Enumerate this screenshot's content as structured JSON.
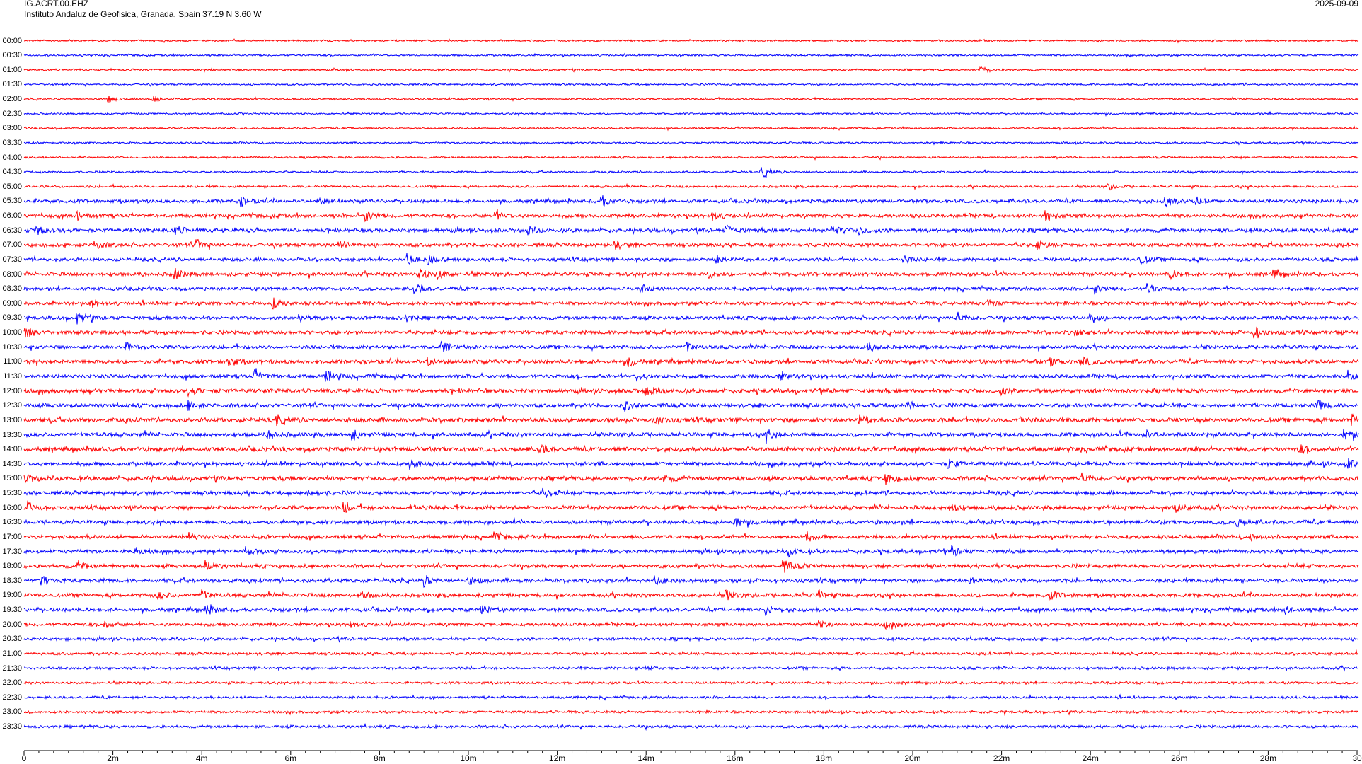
{
  "header": {
    "station": "IG.ACRT.00.EHZ",
    "institution": "Instituto Andaluz de Geofisica, Granada, Spain  37.19 N 3.60 W",
    "date": "2025-09-09"
  },
  "colors": {
    "even_row": "#ff0000",
    "odd_row": "#0000ff",
    "axis": "#000000"
  },
  "rows": [
    "00:00",
    "00:30",
    "01:00",
    "01:30",
    "02:00",
    "02:30",
    "03:00",
    "03:30",
    "04:00",
    "04:30",
    "05:00",
    "05:30",
    "06:00",
    "06:30",
    "07:00",
    "07:30",
    "08:00",
    "08:30",
    "09:00",
    "09:30",
    "10:00",
    "10:30",
    "11:00",
    "11:30",
    "12:00",
    "12:30",
    "13:00",
    "13:30",
    "14:00",
    "14:30",
    "15:00",
    "15:30",
    "16:00",
    "16:30",
    "17:00",
    "17:30",
    "18:00",
    "18:30",
    "19:00",
    "19:30",
    "20:00",
    "20:30",
    "21:00",
    "21:30",
    "22:00",
    "22:30",
    "23:00",
    "23:30"
  ],
  "x_axis": {
    "range_minutes": [
      0,
      30
    ],
    "major_step_minutes": 2,
    "minor_step_seconds": 20,
    "labels": [
      "0",
      "2m",
      "4m",
      "6m",
      "8m",
      "10m",
      "12m",
      "14m",
      "16m",
      "18m",
      "20m",
      "22m",
      "24m",
      "26m",
      "28m",
      "30"
    ]
  },
  "trace_noise": [
    1,
    1,
    1.1,
    1,
    1,
    1,
    1,
    1,
    1.1,
    1.1,
    1.3,
    2,
    2.2,
    2.3,
    2.2,
    2,
    2.2,
    2,
    2,
    2.2,
    2.2,
    2.2,
    2.3,
    2.3,
    2.4,
    2.4,
    2.5,
    2.5,
    2.5,
    2.4,
    2.4,
    2.3,
    2.4,
    2.3,
    2.2,
    2.2,
    2.2,
    2.3,
    2.2,
    2.2,
    2,
    1.7,
    1.6,
    1.5,
    1.4,
    1.4,
    1.5,
    1.6
  ],
  "events": [
    [
      2,
      21.5,
      6
    ],
    [
      4,
      1.9,
      4
    ],
    [
      4,
      2.9,
      4
    ],
    [
      9,
      16.6,
      9
    ],
    [
      10,
      24.4,
      5
    ],
    [
      11,
      4.9,
      6
    ],
    [
      11,
      6.6,
      5
    ],
    [
      11,
      13.0,
      7
    ],
    [
      11,
      25.7,
      9
    ],
    [
      11,
      26.4,
      5
    ],
    [
      12,
      1.2,
      6
    ],
    [
      12,
      7.7,
      7
    ],
    [
      12,
      10.6,
      6
    ],
    [
      12,
      15.5,
      6
    ],
    [
      12,
      23.0,
      7
    ],
    [
      13,
      0.3,
      6
    ],
    [
      13,
      3.4,
      6
    ],
    [
      13,
      11.3,
      6
    ],
    [
      13,
      15.8,
      7
    ],
    [
      13,
      18.2,
      7
    ],
    [
      13,
      18.8,
      5
    ],
    [
      14,
      1.6,
      6
    ],
    [
      14,
      3.9,
      6
    ],
    [
      14,
      7.1,
      6
    ],
    [
      14,
      13.3,
      5
    ],
    [
      14,
      22.8,
      6
    ],
    [
      15,
      8.6,
      8
    ],
    [
      15,
      9.1,
      6
    ],
    [
      15,
      15.6,
      6
    ],
    [
      15,
      19.8,
      5
    ],
    [
      15,
      25.1,
      7
    ],
    [
      16,
      3.4,
      7
    ],
    [
      16,
      8.9,
      7
    ],
    [
      16,
      9.3,
      6
    ],
    [
      16,
      15.4,
      5
    ],
    [
      16,
      25.8,
      6
    ],
    [
      16,
      28.1,
      6
    ],
    [
      17,
      8.8,
      7
    ],
    [
      17,
      13.9,
      6
    ],
    [
      17,
      24.1,
      6
    ],
    [
      17,
      25.3,
      7
    ],
    [
      18,
      1.5,
      6
    ],
    [
      18,
      5.6,
      7
    ],
    [
      18,
      21.7,
      6
    ],
    [
      19,
      1.2,
      8
    ],
    [
      19,
      6.2,
      5
    ],
    [
      19,
      8.6,
      5
    ],
    [
      19,
      21.0,
      8
    ],
    [
      19,
      24.0,
      7
    ],
    [
      20,
      0.0,
      7
    ],
    [
      20,
      23.6,
      6
    ],
    [
      20,
      27.7,
      8
    ],
    [
      21,
      2.3,
      6
    ],
    [
      21,
      9.4,
      8
    ],
    [
      21,
      14.9,
      7
    ],
    [
      21,
      19.0,
      5
    ],
    [
      22,
      4.6,
      7
    ],
    [
      22,
      9.1,
      6
    ],
    [
      22,
      13.6,
      7
    ],
    [
      22,
      23.1,
      5
    ],
    [
      22,
      23.8,
      7
    ],
    [
      23,
      5.2,
      8
    ],
    [
      23,
      6.8,
      8
    ],
    [
      23,
      13.8,
      6
    ],
    [
      23,
      17.0,
      5
    ],
    [
      23,
      29.8,
      7
    ],
    [
      24,
      3.7,
      6
    ],
    [
      24,
      14.0,
      8
    ],
    [
      24,
      22.0,
      5
    ],
    [
      25,
      3.7,
      6
    ],
    [
      25,
      13.5,
      7
    ],
    [
      25,
      19.9,
      5
    ],
    [
      25,
      29.1,
      8
    ],
    [
      26,
      5.7,
      6
    ],
    [
      26,
      14.2,
      8
    ],
    [
      26,
      18.8,
      7
    ],
    [
      26,
      22.4,
      5
    ],
    [
      26,
      29.9,
      7
    ],
    [
      27,
      5.5,
      6
    ],
    [
      27,
      7.4,
      6
    ],
    [
      27,
      16.7,
      7
    ],
    [
      27,
      25.2,
      6
    ],
    [
      27,
      29.7,
      8
    ],
    [
      28,
      11.6,
      6
    ],
    [
      28,
      28.7,
      6
    ],
    [
      29,
      8.7,
      7
    ],
    [
      29,
      20.8,
      6
    ],
    [
      29,
      29.8,
      6
    ],
    [
      30,
      0.0,
      6
    ],
    [
      30,
      14.4,
      6
    ],
    [
      30,
      19.4,
      7
    ],
    [
      30,
      23.8,
      7
    ],
    [
      31,
      6.4,
      5
    ],
    [
      31,
      11.7,
      7
    ],
    [
      32,
      0.1,
      6
    ],
    [
      32,
      7.2,
      7
    ],
    [
      32,
      8.7,
      5
    ],
    [
      32,
      20.8,
      8
    ],
    [
      32,
      25.9,
      6
    ],
    [
      33,
      16.0,
      7
    ],
    [
      33,
      27.3,
      6
    ],
    [
      34,
      3.7,
      5
    ],
    [
      34,
      10.6,
      5
    ],
    [
      34,
      17.6,
      7
    ],
    [
      34,
      27.6,
      5
    ],
    [
      35,
      2.5,
      5
    ],
    [
      35,
      5.0,
      6
    ],
    [
      35,
      17.2,
      6
    ],
    [
      35,
      20.9,
      6
    ],
    [
      36,
      1.2,
      6
    ],
    [
      36,
      4.1,
      7
    ],
    [
      36,
      17.1,
      8
    ],
    [
      37,
      0.4,
      6
    ],
    [
      37,
      9.0,
      7
    ],
    [
      37,
      10.0,
      5
    ],
    [
      37,
      14.2,
      5
    ],
    [
      37,
      21.3,
      5
    ],
    [
      38,
      3.0,
      5
    ],
    [
      38,
      4.0,
      6
    ],
    [
      38,
      7.6,
      6
    ],
    [
      38,
      15.8,
      7
    ],
    [
      38,
      17.9,
      5
    ],
    [
      38,
      23.1,
      5
    ],
    [
      39,
      4.1,
      7
    ],
    [
      39,
      10.3,
      6
    ],
    [
      39,
      16.7,
      6
    ],
    [
      39,
      28.4,
      6
    ],
    [
      40,
      1.8,
      5
    ],
    [
      40,
      7.3,
      6
    ],
    [
      40,
      17.9,
      5
    ],
    [
      40,
      19.4,
      5
    ],
    [
      43,
      14.0,
      4
    ]
  ]
}
